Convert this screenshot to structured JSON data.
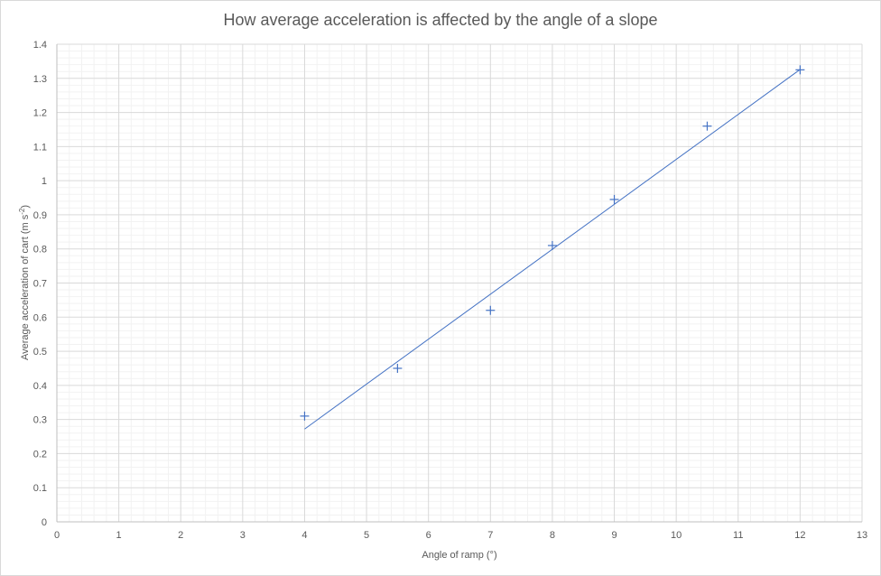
{
  "chart_data": {
    "type": "scatter",
    "title": "How average acceleration is affected by the angle of a slope",
    "xlabel": "Angle of ramp (°)",
    "ylabel_main": "Average acceleration of cart (m s",
    "ylabel_sup": "-2",
    "ylabel_close": ")",
    "xlim": [
      0,
      13
    ],
    "ylim": [
      0,
      1.4
    ],
    "x_ticks": [
      "0",
      "1",
      "2",
      "3",
      "4",
      "5",
      "6",
      "7",
      "8",
      "9",
      "10",
      "11",
      "12",
      "13"
    ],
    "y_ticks": [
      "0",
      "0.1",
      "0.2",
      "0.3",
      "0.4",
      "0.5",
      "0.6",
      "0.7",
      "0.8",
      "0.9",
      "1",
      "1.1",
      "1.2",
      "1.3",
      "1.4"
    ],
    "grid": true,
    "minor_grid": true,
    "marker": "plus",
    "series": [
      {
        "x": [
          4,
          5.5,
          7,
          8,
          9,
          10.5,
          12
        ],
        "y": [
          0.31,
          0.45,
          0.62,
          0.81,
          0.945,
          1.16,
          1.325
        ]
      }
    ],
    "trendline": {
      "x": [
        4,
        12
      ],
      "y": [
        0.272,
        1.326
      ]
    },
    "colors": {
      "series": "#4472c4",
      "major_grid": "#d9d9d9",
      "minor_grid": "#f2f2f2",
      "text": "#595959"
    }
  }
}
